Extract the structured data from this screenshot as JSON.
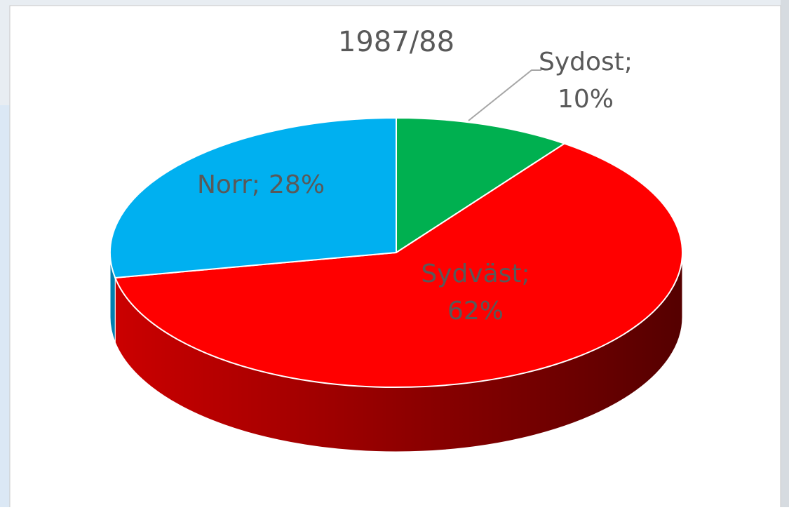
{
  "chart_data": {
    "type": "pie3d",
    "title": "1987/88",
    "categories": [
      "Sydost;",
      "Sydväst;",
      "Norr;"
    ],
    "values": [
      10,
      62,
      28
    ],
    "value_labels": [
      "10%",
      "62%",
      "28%"
    ],
    "colors": [
      "#00b050",
      "#ff0000",
      "#00b0f0"
    ]
  }
}
